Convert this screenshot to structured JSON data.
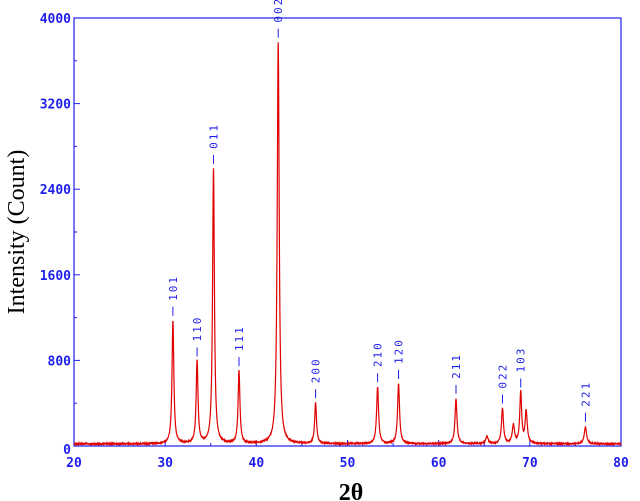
{
  "chart_data": {
    "type": "line",
    "title": "",
    "xlabel": "2θ",
    "ylabel": "Intensity (Count)",
    "xlim": [
      20,
      80
    ],
    "ylim": [
      0,
      4000
    ],
    "x_ticks": [
      "20",
      "30",
      "40",
      "50",
      "60",
      "70",
      "80"
    ],
    "y_ticks": [
      "0",
      "800",
      "1600",
      "2400",
      "3200",
      "4000"
    ],
    "grid": false,
    "legend": "none",
    "colors": {
      "line": "#e00000",
      "axis": "#1e1eea",
      "labels": "#1e1eea"
    },
    "baseline": 20,
    "peaks": [
      {
        "x": 30.85,
        "y": 1150,
        "w": 0.12
      },
      {
        "x": 33.5,
        "y": 770,
        "w": 0.12
      },
      {
        "x": 35.3,
        "y": 2570,
        "w": 0.12
      },
      {
        "x": 38.1,
        "y": 680,
        "w": 0.12
      },
      {
        "x": 42.4,
        "y": 3750,
        "w": 0.13
      },
      {
        "x": 46.5,
        "y": 380,
        "w": 0.12
      },
      {
        "x": 53.3,
        "y": 530,
        "w": 0.13
      },
      {
        "x": 55.6,
        "y": 560,
        "w": 0.13
      },
      {
        "x": 61.9,
        "y": 420,
        "w": 0.13
      },
      {
        "x": 65.3,
        "y": 70,
        "w": 0.15
      },
      {
        "x": 67.0,
        "y": 330,
        "w": 0.13
      },
      {
        "x": 68.2,
        "y": 170,
        "w": 0.15
      },
      {
        "x": 69.0,
        "y": 480,
        "w": 0.12
      },
      {
        "x": 69.6,
        "y": 300,
        "w": 0.14
      },
      {
        "x": 76.1,
        "y": 160,
        "w": 0.15
      }
    ],
    "annotations": [
      {
        "hkl": "101",
        "x": 30.85,
        "y": 1150
      },
      {
        "hkl": "110",
        "x": 33.5,
        "y": 770
      },
      {
        "hkl": "011",
        "x": 35.3,
        "y": 2570
      },
      {
        "hkl": "111",
        "x": 38.1,
        "y": 680
      },
      {
        "hkl": "002",
        "x": 42.4,
        "y": 3750
      },
      {
        "hkl": "200",
        "x": 46.5,
        "y": 380
      },
      {
        "hkl": "210",
        "x": 53.3,
        "y": 530
      },
      {
        "hkl": "120",
        "x": 55.6,
        "y": 560
      },
      {
        "hkl": "211",
        "x": 61.9,
        "y": 420
      },
      {
        "hkl": "022",
        "x": 67.0,
        "y": 330
      },
      {
        "hkl": "103",
        "x": 69.0,
        "y": 480
      },
      {
        "hkl": "221",
        "x": 76.1,
        "y": 160
      }
    ]
  }
}
